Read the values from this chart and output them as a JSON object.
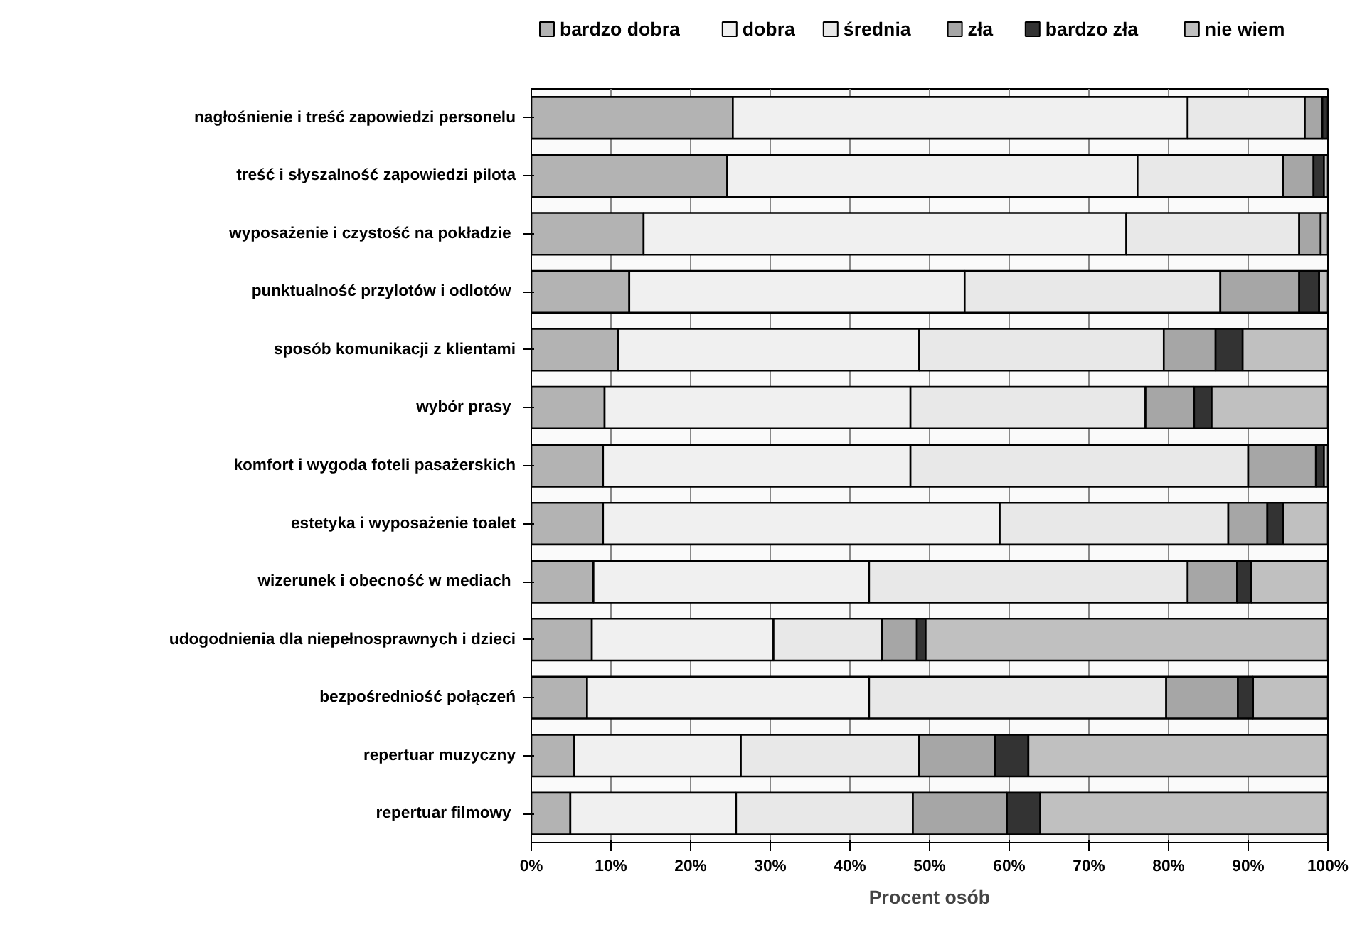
{
  "chart_data": {
    "type": "bar",
    "orientation": "horizontal",
    "stacked": true,
    "xlabel": "Procent osób",
    "categories": [
      "nagłośnienie i treść zapowiedzi personelu",
      "treść i słyszalność zapowiedzi pilota",
      "wyposażenie  i czystość na pokładzie",
      "punktualność  przylotów i odlotów",
      "sposób komunikacji z klientami",
      "wybór  prasy",
      "komfort i wygoda foteli pasażerskich",
      "estetyka i wyposażenie toalet",
      "wizerunek i obecność  w mediach",
      "udogodnienia dla niepełnosprawnych i dzieci",
      "bezpośredniość połączeń",
      "repertuar muzyczny",
      "repertuar  filmowy"
    ],
    "series": [
      {
        "name": "bardzo dobra",
        "color": "#b3b3b3",
        "values": [
          25.3,
          24.6,
          14.1,
          12.3,
          10.9,
          9.2,
          9.0,
          9.0,
          7.8,
          7.6,
          7.0,
          5.4,
          4.9
        ]
      },
      {
        "name": "dobra",
        "color": "#f0f0f0",
        "values": [
          57.1,
          51.5,
          60.6,
          42.1,
          37.8,
          38.4,
          38.6,
          49.8,
          34.6,
          22.8,
          35.4,
          20.9,
          20.8
        ]
      },
      {
        "name": "średnia",
        "color": "#e8e8e8",
        "values": [
          14.7,
          18.3,
          21.7,
          32.1,
          30.7,
          29.5,
          42.4,
          28.7,
          40.0,
          13.6,
          37.3,
          22.4,
          22.2
        ]
      },
      {
        "name": "zła",
        "color": "#a6a6a6",
        "values": [
          2.2,
          3.8,
          2.7,
          9.9,
          6.5,
          6.1,
          8.5,
          4.9,
          6.2,
          4.4,
          9.0,
          9.5,
          11.8
        ]
      },
      {
        "name": "bardzo zła",
        "color": "#333333",
        "values": [
          0.7,
          1.3,
          null,
          2.5,
          3.4,
          2.2,
          1.0,
          2.0,
          1.8,
          1.1,
          1.9,
          4.2,
          4.2
        ]
      },
      {
        "name": "nie wiem",
        "color": "#c0c0c0",
        "values": [
          null,
          0.5,
          0.9,
          1.1,
          10.7,
          14.6,
          0.5,
          5.6,
          9.6,
          50.5,
          9.4,
          37.6,
          36.1
        ]
      }
    ],
    "xlim": [
      0,
      100
    ],
    "xticks": [
      {
        "value": 0,
        "label": "0%"
      },
      {
        "value": 10,
        "label": "10%"
      },
      {
        "value": 20,
        "label": "20%"
      },
      {
        "value": 30,
        "label": "30%"
      },
      {
        "value": 40,
        "label": "40%"
      },
      {
        "value": 50,
        "label": "50%"
      },
      {
        "value": 60,
        "label": "60%"
      },
      {
        "value": 70,
        "label": "70%"
      },
      {
        "value": 80,
        "label": "80%"
      },
      {
        "value": 90,
        "label": "90%"
      },
      {
        "value": 100,
        "label": "100%"
      }
    ],
    "grid": "x",
    "legend": "top"
  }
}
